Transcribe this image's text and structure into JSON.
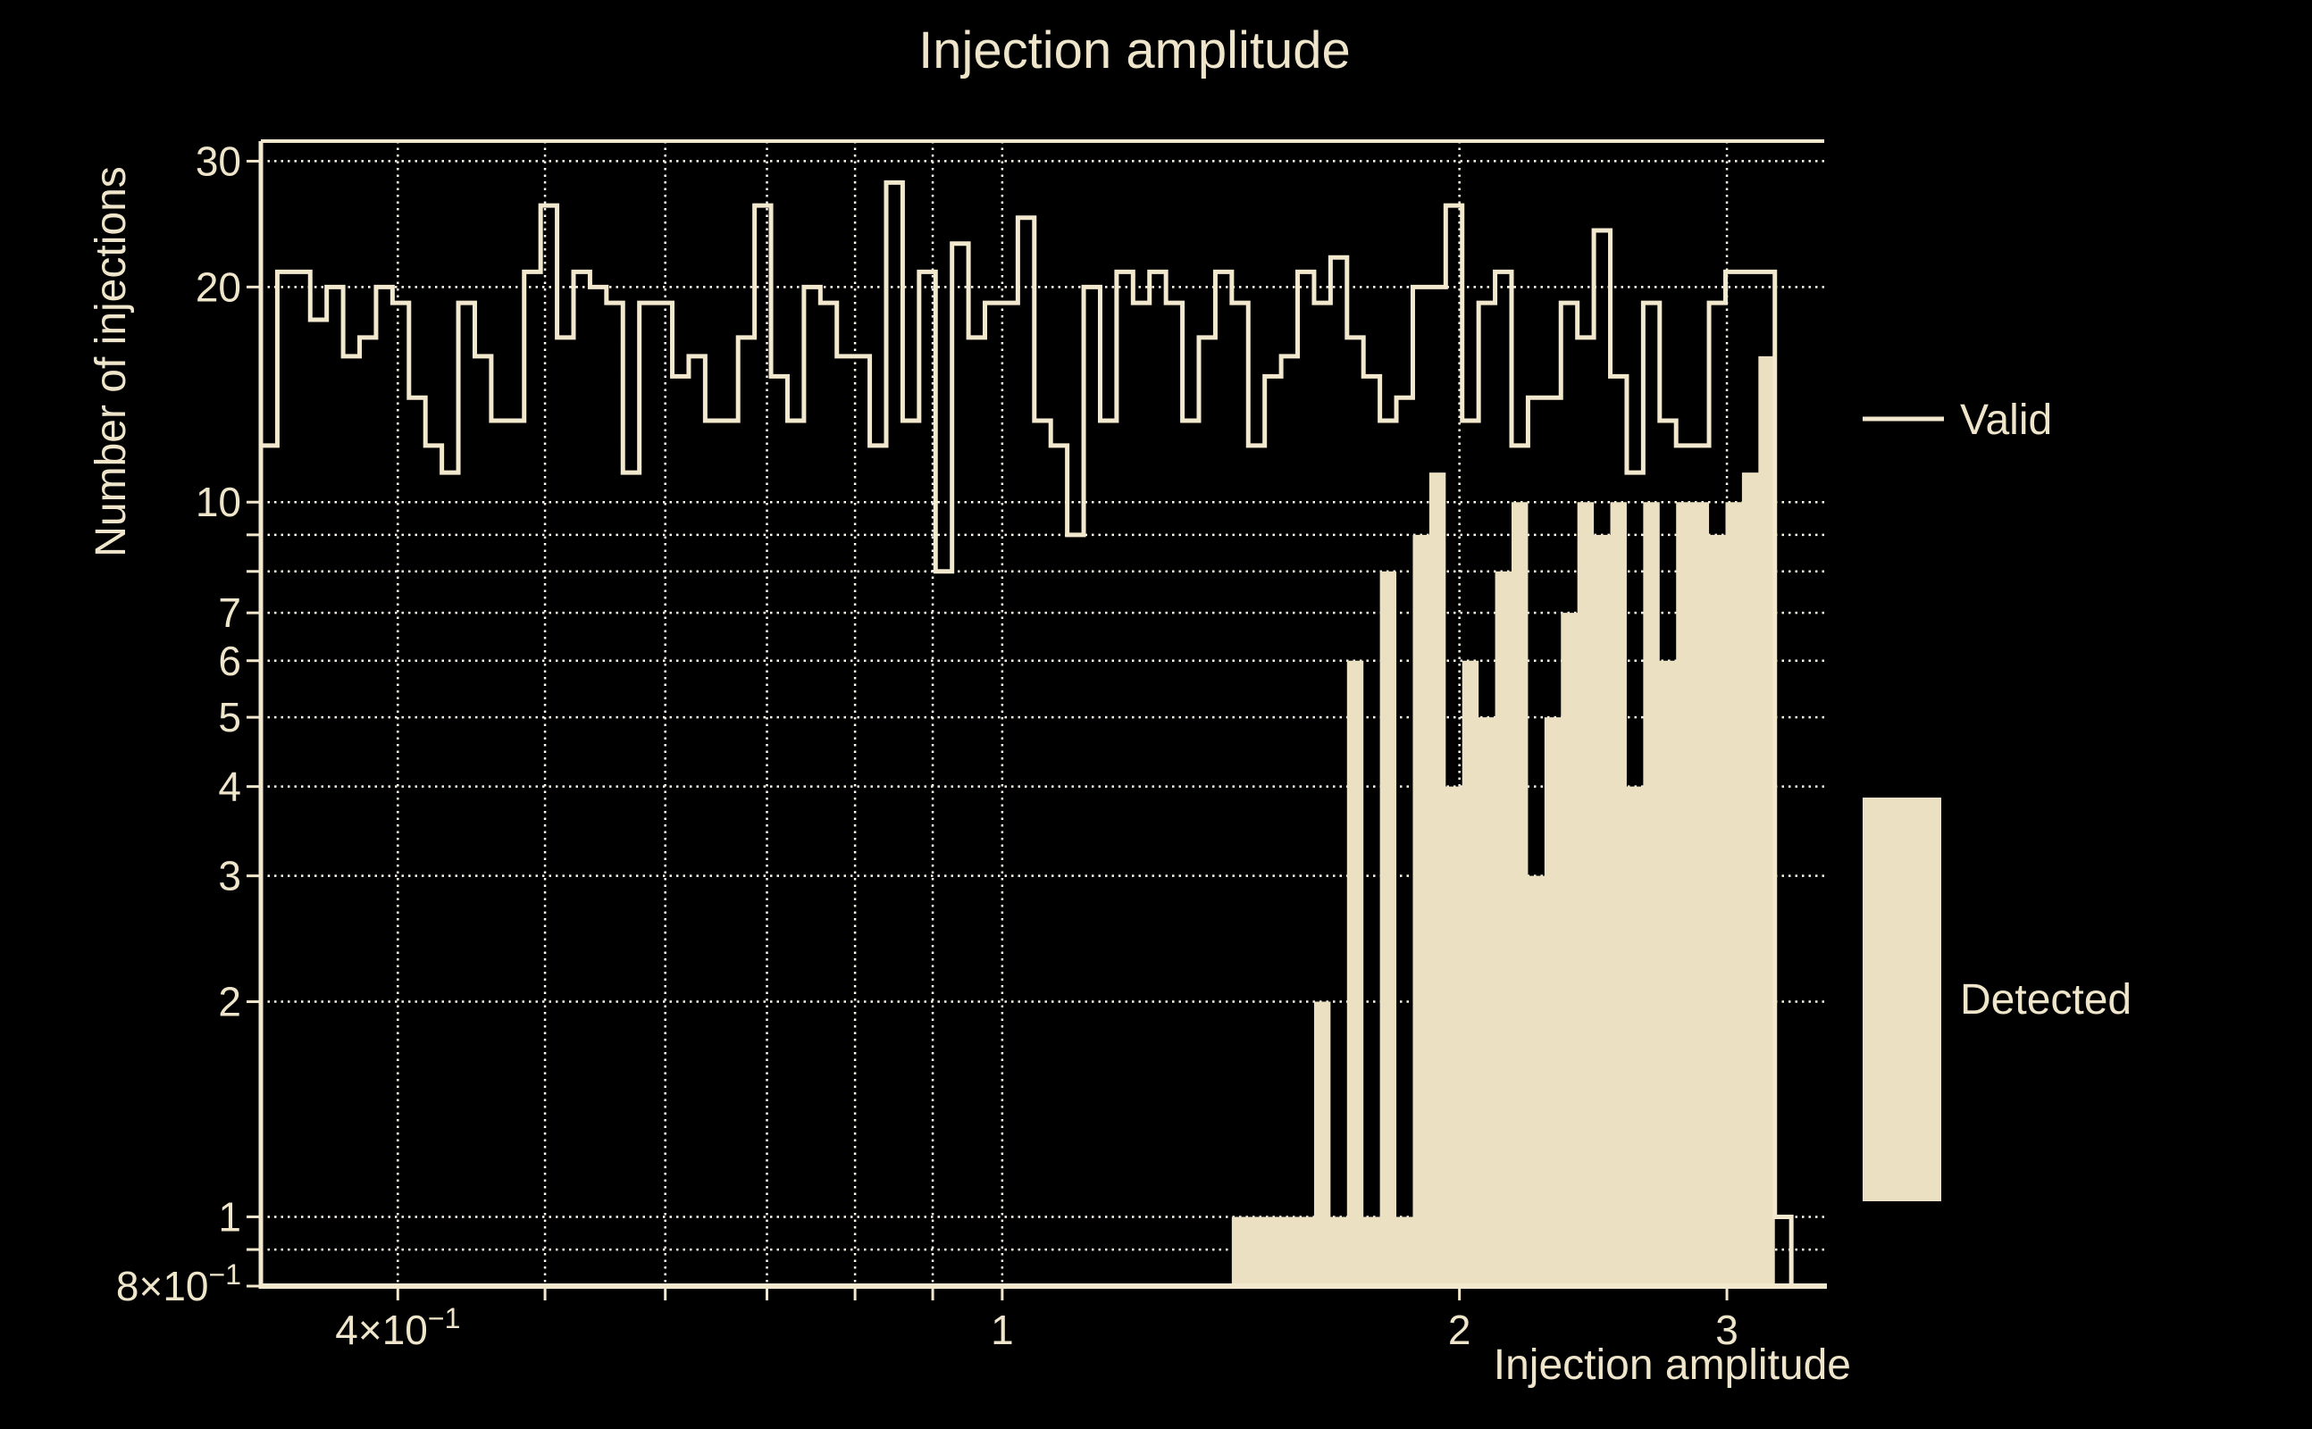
{
  "title": "Injection amplitude",
  "colors": {
    "background": "#000000",
    "fill": "#ece0c2",
    "line": "#f2e8ce",
    "text": "#efe5ca",
    "grid": "#fdf9ec"
  },
  "y_axis": {
    "title": "Number of injections",
    "tick_labels": [
      {
        "v": 30,
        "main": "30",
        "sup": ""
      },
      {
        "v": 20,
        "main": "20",
        "sup": ""
      },
      {
        "v": 10,
        "main": "10",
        "sup": ""
      },
      {
        "v": 7,
        "main": "7",
        "sup": ""
      },
      {
        "v": 6,
        "main": "6",
        "sup": ""
      },
      {
        "v": 5,
        "main": "5",
        "sup": ""
      },
      {
        "v": 4,
        "main": "4",
        "sup": ""
      },
      {
        "v": 3,
        "main": "3",
        "sup": ""
      },
      {
        "v": 2,
        "main": "2",
        "sup": ""
      },
      {
        "v": 1,
        "main": "1",
        "sup": ""
      },
      {
        "v": 0.8,
        "main": "8×10",
        "sup": "−1"
      }
    ],
    "minor_ticks": [
      0.9,
      8,
      9
    ],
    "gridlines": [
      0.9,
      1,
      2,
      3,
      4,
      5,
      6,
      7,
      8,
      9,
      10,
      20,
      30
    ]
  },
  "x_axis": {
    "title": "Injection amplitude",
    "tick_labels": [
      {
        "v": 0.4,
        "main": "4×10",
        "sup": "−1"
      },
      {
        "v": 1,
        "main": "1",
        "sup": ""
      },
      {
        "v": 2,
        "main": "2",
        "sup": ""
      },
      {
        "v": 3,
        "main": "3",
        "sup": ""
      }
    ],
    "minor_ticks": [
      0.5,
      0.6,
      0.7,
      0.8,
      0.9
    ],
    "gridlines": [
      0.4,
      0.5,
      0.6,
      0.7,
      0.8,
      0.9,
      1,
      2,
      3
    ]
  },
  "legend": {
    "items": [
      {
        "label": "Valid",
        "swatch": "line"
      },
      {
        "label": "Detected",
        "swatch": "fill"
      }
    ]
  },
  "chart_data": {
    "type": "bar",
    "subtype": "log-log step histogram (Valid outline) + filled histogram (Detected)",
    "title": "Injection amplitude",
    "xlabel": "Injection amplitude",
    "ylabel": "Number of injections",
    "x_scale": "log",
    "y_scale": "log",
    "xlim": [
      0.325,
      3.477
    ],
    "ylim": [
      0.8,
      32
    ],
    "grid": "dotted",
    "legend_position": "right",
    "bins": {
      "start": 0.325,
      "count": 95,
      "log10_width": 0.010836
    },
    "series": [
      {
        "name": "Valid",
        "style": "step-outline",
        "values": [
          12,
          21,
          21,
          18,
          20,
          16,
          17,
          20,
          19,
          14,
          12,
          11,
          19,
          16,
          13,
          13,
          21,
          26,
          17,
          21,
          20,
          19,
          11,
          19,
          19,
          15,
          16,
          13,
          13,
          17,
          26,
          15,
          13,
          20,
          19,
          16,
          16,
          12,
          28,
          13,
          21,
          8,
          23,
          17,
          19,
          19,
          25,
          13,
          12,
          9,
          20,
          13,
          21,
          19,
          21,
          19,
          13,
          17,
          21,
          19,
          12,
          15,
          16,
          21,
          19,
          22,
          17,
          15,
          13,
          14,
          20,
          20,
          26,
          13,
          19,
          21,
          12,
          14,
          14,
          19,
          17,
          24,
          15,
          11,
          19,
          13,
          12,
          12,
          19,
          21,
          21,
          21,
          1,
          0,
          0
        ]
      },
      {
        "name": "Detected",
        "style": "filled",
        "values": [
          0,
          0,
          0,
          0,
          0,
          0,
          0,
          0,
          0,
          0,
          0,
          0,
          0,
          0,
          0,
          0,
          0,
          0,
          0,
          0,
          0,
          0,
          0,
          0,
          0,
          0,
          0,
          0,
          0,
          0,
          0,
          0,
          0,
          0,
          0,
          0,
          0,
          0,
          0,
          0,
          0,
          0,
          0,
          0,
          0,
          0,
          0,
          0,
          0,
          0,
          0,
          0,
          0,
          0,
          0,
          0,
          0,
          0,
          0,
          1,
          1,
          1,
          1,
          1,
          2,
          1,
          6,
          1,
          8,
          1,
          9,
          11,
          4,
          6,
          5,
          8,
          10,
          3,
          5,
          7,
          10,
          9,
          10,
          4,
          10,
          6,
          10,
          10,
          9,
          10,
          11,
          16,
          0,
          0,
          0
        ]
      }
    ]
  }
}
